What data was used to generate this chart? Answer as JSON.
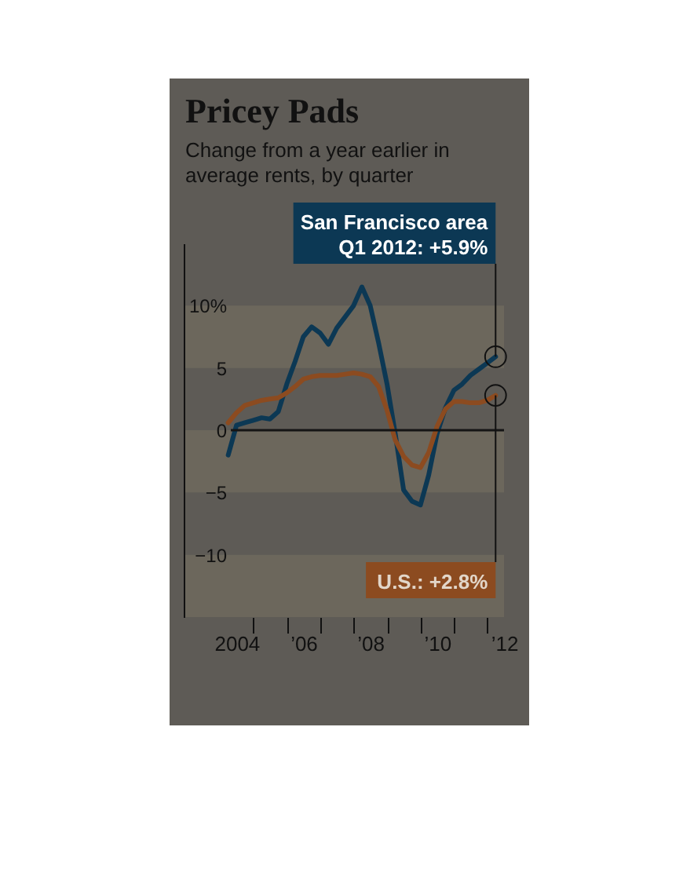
{
  "chart_data": {
    "type": "line",
    "title": "Pricey Pads",
    "subtitle": "Change from a year earlier in\naverage rents, by quarter",
    "x": [
      "2004-03-31",
      "2004-06-30",
      "2004-09-30",
      "2004-12-31",
      "2005-03-31",
      "2005-06-30",
      "2005-09-30",
      "2005-12-31",
      "2006-03-31",
      "2006-06-30",
      "2006-09-30",
      "2006-12-31",
      "2007-03-31",
      "2007-06-30",
      "2007-09-30",
      "2007-12-31",
      "2008-03-31",
      "2008-06-30",
      "2008-09-30",
      "2008-12-31",
      "2009-03-31",
      "2009-06-30",
      "2009-09-30",
      "2009-12-31",
      "2010-03-31",
      "2010-06-30",
      "2010-09-30",
      "2010-12-31",
      "2011-03-31",
      "2011-06-30",
      "2011-09-30",
      "2011-12-31",
      "2012-03-31"
    ],
    "series": [
      {
        "color": "#0c3854",
        "values": [
          -2.0,
          0.4,
          0.6,
          0.8,
          1.0,
          0.9,
          1.5,
          3.7,
          5.5,
          7.5,
          8.3,
          7.8,
          6.9,
          8.2,
          9.1,
          10.0,
          11.5,
          10.0,
          7.0,
          3.7,
          -0.3,
          -4.8,
          -5.7,
          -6.0,
          -3.6,
          -0.3,
          1.8,
          3.2,
          3.7,
          4.4,
          4.9,
          5.4,
          5.9
        ]
      },
      {
        "color": "#8c4b20",
        "values": [
          0.6,
          1.4,
          2.0,
          2.2,
          2.4,
          2.5,
          2.6,
          3.0,
          3.5,
          4.1,
          4.3,
          4.4,
          4.4,
          4.4,
          4.5,
          4.6,
          4.5,
          4.3,
          3.5,
          1.6,
          -0.8,
          -2.1,
          -2.8,
          -3.0,
          -1.8,
          0.3,
          1.7,
          2.3,
          2.3,
          2.2,
          2.2,
          2.4,
          2.8
        ]
      }
    ],
    "xlim": [
      "2002-12-01",
      "2012-07-01"
    ],
    "xticks": [
      {
        "value": "2004-07-01",
        "label": "2004"
      },
      {
        "value": "2005-01-01",
        "label": null
      },
      {
        "value": "2006-01-01",
        "label": null
      },
      {
        "value": "2006-07-01",
        "label": "’06"
      },
      {
        "value": "2007-01-01",
        "label": null
      },
      {
        "value": "2008-01-01",
        "label": null
      },
      {
        "value": "2008-07-01",
        "label": "’08"
      },
      {
        "value": "2009-01-01",
        "label": null
      },
      {
        "value": "2010-01-01",
        "label": null
      },
      {
        "value": "2010-07-01",
        "label": "’10"
      },
      {
        "value": "2011-01-01",
        "label": null
      },
      {
        "value": "2012-01-01",
        "label": null
      },
      {
        "value": "2012-07-01",
        "label": "’12"
      }
    ],
    "ylim": [
      -15,
      15
    ],
    "yticks": [
      {
        "value": 10,
        "label": "10%"
      },
      5,
      0,
      -5,
      -10
    ],
    "ref_lines": [
      {
        "axis": "y",
        "value": 0,
        "color": "#151515"
      }
    ],
    "bands": [
      {
        "axis": "y",
        "from": 5,
        "to": 10,
        "color": "#6c675c"
      },
      {
        "axis": "y",
        "from": -5,
        "to": 0,
        "color": "#6c675c"
      },
      {
        "axis": "y",
        "from": -15,
        "to": -10,
        "color": "#6c675c"
      }
    ],
    "annotations": [
      {
        "text": "San Francisco area\nQ1 2012:  +5.9%",
        "x": "2012-03-31",
        "y": 5.9
      },
      {
        "text": "U.S.: +2.8%",
        "x": "2012-03-31",
        "y": 2.8
      }
    ]
  }
}
